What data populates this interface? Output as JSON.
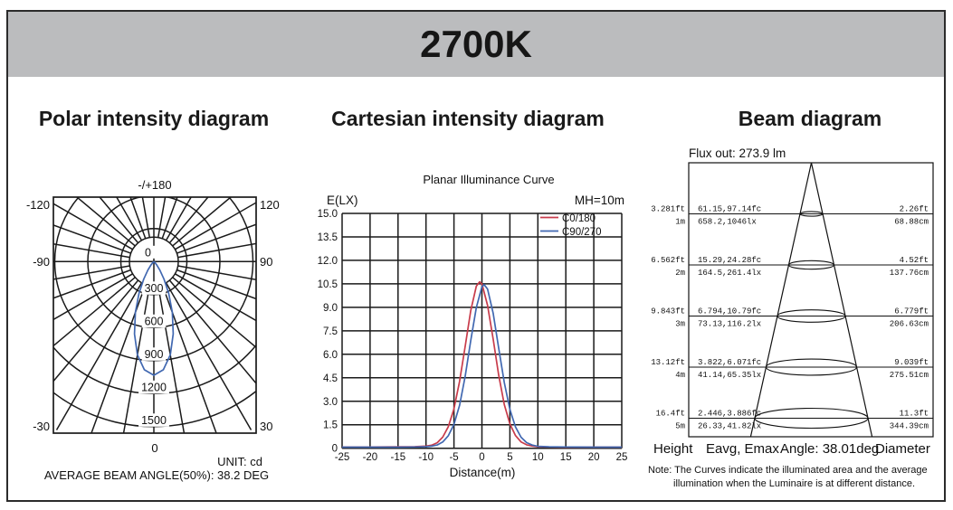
{
  "header": {
    "title": "2700K"
  },
  "colors": {
    "header_band": "#bbbcbe",
    "grid": "#1a1a1a",
    "curve_red": "#c83c4b",
    "curve_blue": "#4168b1"
  },
  "panels": {
    "polar": {
      "title": "Polar intensity diagram",
      "top_label": "-/+180",
      "center_label": "0",
      "angle_labels": {
        "top_left": "-120",
        "top_right": "120",
        "mid_left": "-90",
        "mid_right": "90",
        "bottom_left": "-30",
        "bottom_right": "30",
        "bottom_center": "0"
      },
      "ring_labels": [
        "300",
        "600",
        "900",
        "1200",
        "1500"
      ],
      "unit_note": "UNIT: cd",
      "beam_angle_note": "AVERAGE BEAM ANGLE(50%): 38.2 DEG"
    },
    "cartesian": {
      "title": "Cartesian intensity diagram",
      "subtitle": "Planar Illuminance Curve",
      "y_axis_label": "E(LX)",
      "mount_height": "MH=10m",
      "x_axis_label": "Distance(m)",
      "legend": [
        {
          "label": "C0/180",
          "color": "#c83c4b"
        },
        {
          "label": "C90/270",
          "color": "#4168b1"
        }
      ]
    },
    "beam": {
      "title": "Beam diagram",
      "flux_label": "Flux out: 273.9 lm",
      "footer": {
        "height": "Height",
        "eavg": "Eavg, Emax",
        "angle": "Angle: 38.01deg",
        "diameter": "Diameter"
      },
      "note_line1": "Note: The Curves indicate the illuminated area and the average",
      "note_line2": "illumination when the Luminaire is at different distance."
    }
  },
  "chart_data": [
    {
      "type": "line",
      "name": "polar_intensity_diagram",
      "title": "Polar intensity diagram",
      "units": "cd",
      "ring_values_cd": [
        300,
        600,
        900,
        1200,
        1500
      ],
      "angle_tick_labels_deg": [
        -120,
        -90,
        -30,
        0,
        30,
        90,
        120,
        180
      ],
      "average_beam_angle_50pct_deg": 38.2,
      "series": [
        {
          "name": "C90/270",
          "color": "#4168b1",
          "theta_deg": [
            -50,
            -45,
            -40,
            -35,
            -30,
            -25,
            -20,
            -15,
            -10,
            -5,
            0,
            5,
            10,
            15,
            20,
            25,
            30,
            35,
            40,
            45,
            50
          ],
          "cd": [
            6,
            16,
            42,
            94,
            184,
            318,
            490,
            681,
            860,
            987,
            1033,
            987,
            860,
            681,
            490,
            318,
            184,
            94,
            42,
            16,
            6
          ]
        }
      ]
    },
    {
      "type": "line",
      "name": "planar_illuminance_curve",
      "title": "Planar Illuminance Curve",
      "xlabel": "Distance(m)",
      "ylabel": "E(LX)",
      "xlim": [
        -25,
        25
      ],
      "ylim": [
        0,
        15
      ],
      "x_tick_step": 5,
      "y_tick_step": 1.5,
      "mounting_height_m": 10,
      "grid": true,
      "legend_position": "top-right",
      "x_ticks": [
        "-25",
        "-20",
        "-15",
        "-10",
        "-5",
        "0",
        "5",
        "10",
        "15",
        "20",
        "25"
      ],
      "y_ticks": [
        "15.0",
        "13.5",
        "12.0",
        "10.5",
        "9.0",
        "7.5",
        "6.0",
        "4.5",
        "3.0",
        "1.5",
        "0"
      ],
      "series": [
        {
          "name": "C0/180",
          "color": "#c83c4b",
          "x": [
            -25,
            -20,
            -15,
            -12,
            -10,
            -9,
            -8,
            -7,
            -6,
            -5,
            -4,
            -3,
            -2,
            -1,
            -0.4,
            0,
            1,
            2,
            3,
            4,
            5,
            6,
            7,
            8,
            9,
            10,
            12,
            15,
            20,
            25
          ],
          "y": [
            0.08,
            0.08,
            0.09,
            0.1,
            0.13,
            0.19,
            0.35,
            0.71,
            1.38,
            2.52,
            4.27,
            6.51,
            8.78,
            10.35,
            10.63,
            10.5,
            9.13,
            6.98,
            4.68,
            2.79,
            1.56,
            0.81,
            0.4,
            0.22,
            0.14,
            0.1,
            0.08,
            0.07,
            0.07,
            0.07
          ]
        },
        {
          "name": "C90/270",
          "color": "#4168b1",
          "x": [
            -25,
            -20,
            -15,
            -12,
            -10,
            -9,
            -8,
            -7,
            -6,
            -5,
            -4,
            -3,
            -2,
            -1,
            0,
            0.4,
            1,
            2,
            3,
            4,
            5,
            6,
            7,
            8,
            9,
            10,
            12,
            15,
            20,
            25
          ],
          "y": [
            0.07,
            0.07,
            0.07,
            0.08,
            0.1,
            0.13,
            0.21,
            0.4,
            0.8,
            1.53,
            2.74,
            4.6,
            6.86,
            8.98,
            10.32,
            10.45,
            10.17,
            8.63,
            6.4,
            4.2,
            2.48,
            1.36,
            0.7,
            0.36,
            0.2,
            0.12,
            0.09,
            0.08,
            0.07,
            0.07
          ]
        }
      ]
    },
    {
      "type": "table",
      "name": "beam_diagram_table",
      "flux_out_lm": 273.9,
      "beam_angle_deg": 38.01,
      "columns": [
        "Height",
        "Eavg, Emax",
        "Angle",
        "Diameter"
      ],
      "rows": [
        {
          "height_ft": "3.281ft",
          "height_m": "1m",
          "eavg_emax_fc": "61.15,97.14fc",
          "eavg_emax_lx": "658.2,1046lx",
          "diameter_ft": "2.26ft",
          "diameter_cm": "68.88cm"
        },
        {
          "height_ft": "6.562ft",
          "height_m": "2m",
          "eavg_emax_fc": "15.29,24.28fc",
          "eavg_emax_lx": "164.5,261.4lx",
          "diameter_ft": "4.52ft",
          "diameter_cm": "137.76cm"
        },
        {
          "height_ft": "9.843ft",
          "height_m": "3m",
          "eavg_emax_fc": "6.794,10.79fc",
          "eavg_emax_lx": "73.13,116.2lx",
          "diameter_ft": "6.779ft",
          "diameter_cm": "206.63cm"
        },
        {
          "height_ft": "13.12ft",
          "height_m": "4m",
          "eavg_emax_fc": "3.822,6.071fc",
          "eavg_emax_lx": "41.14,65.35lx",
          "diameter_ft": "9.039ft",
          "diameter_cm": "275.51cm"
        },
        {
          "height_ft": "16.4ft",
          "height_m": "5m",
          "eavg_emax_fc": "2.446,3.886fc",
          "eavg_emax_lx": "26.33,41.82lx",
          "diameter_ft": "11.3ft",
          "diameter_cm": "344.39cm"
        }
      ]
    }
  ]
}
